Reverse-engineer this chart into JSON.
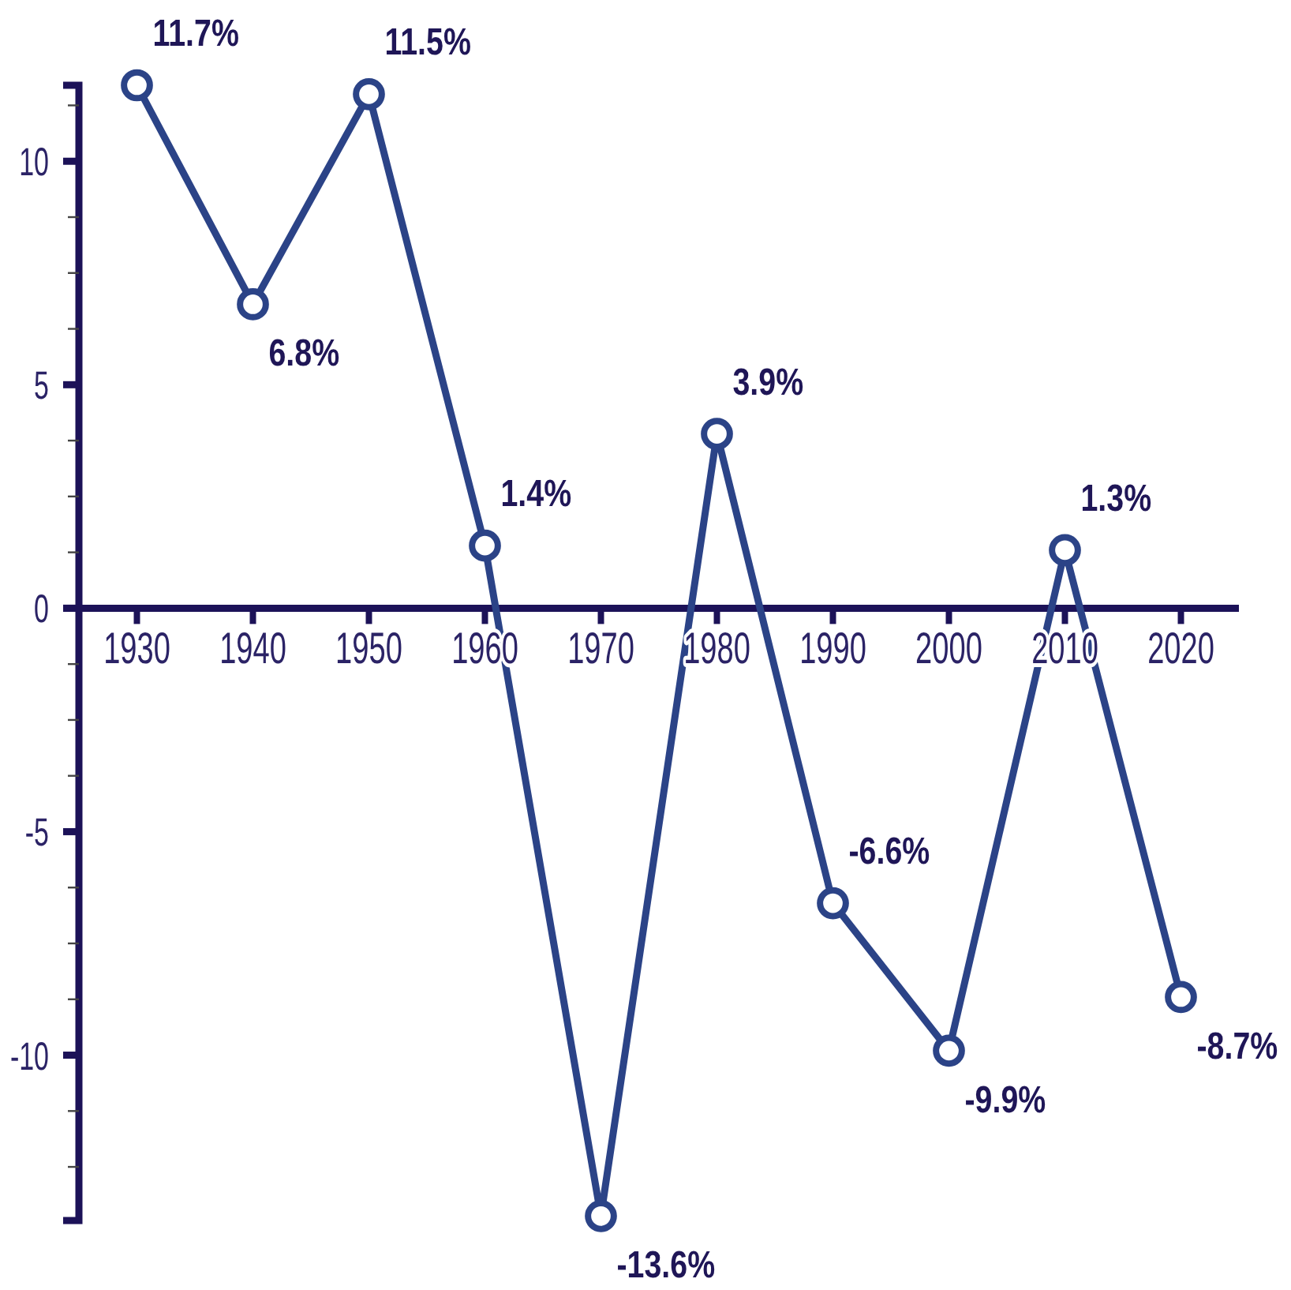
{
  "chart_data": {
    "type": "line",
    "categories": [
      "1930",
      "1940",
      "1950",
      "1960",
      "1970",
      "1980",
      "1990",
      "2000",
      "2010",
      "2020"
    ],
    "values": [
      11.7,
      6.8,
      11.5,
      1.4,
      -13.6,
      3.9,
      -6.6,
      -9.9,
      1.3,
      -8.7
    ],
    "value_labels": [
      "11.7%",
      "6.8%",
      "11.5%",
      "1.4%",
      "-13.6%",
      "3.9%",
      "-6.6%",
      "-9.9%",
      "1.3%",
      "-8.7%"
    ],
    "color": "#2b4387",
    "ylim": [
      -13.7,
      11.7
    ],
    "yticks": [
      {
        "value": -12.5,
        "label": null
      },
      {
        "value": -11.25,
        "label": null
      },
      -10,
      {
        "value": -8.75,
        "label": null
      },
      {
        "value": -7.5,
        "label": null
      },
      {
        "value": -6.25,
        "label": null
      },
      -5,
      {
        "value": -3.75,
        "label": null
      },
      {
        "value": -2.5,
        "label": null
      },
      {
        "value": -1.25,
        "label": null
      },
      0,
      {
        "value": 1.25,
        "label": null
      },
      {
        "value": 2.5,
        "label": null
      },
      {
        "value": 3.75,
        "label": null
      },
      5,
      {
        "value": 6.25,
        "label": null
      },
      {
        "value": 7.5,
        "label": null
      },
      {
        "value": 8.75,
        "label": null
      },
      10,
      {
        "value": 11.25,
        "label": null
      }
    ],
    "marker": "circle",
    "line_style": "solid"
  }
}
